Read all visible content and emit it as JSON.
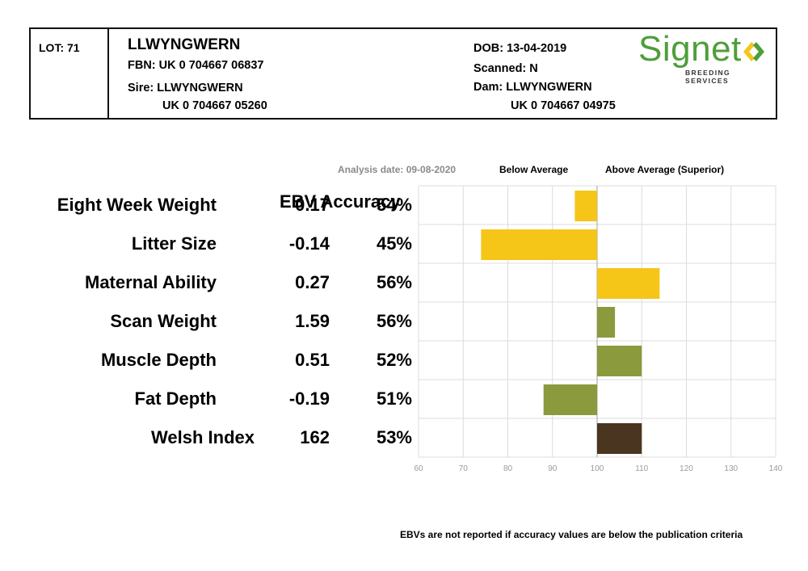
{
  "header": {
    "lot": "LOT: 71",
    "name": "LLWYNGWERN",
    "fbn": "FBN: UK 0 704667 06837",
    "sire": "Sire: LLWYNGWERN",
    "sire_id": "UK 0 704667 05260",
    "dob": "DOB: 13-04-2019",
    "scanned": "Scanned: N",
    "dam": "Dam: LLWYNGWERN",
    "dam_id": "UK 0 704667 04975",
    "logo_text": "Signet",
    "logo_sub": "BREEDING SERVICES"
  },
  "labels": {
    "analysis_date": "Analysis date: 09-08-2020",
    "below_average": "Below Average",
    "above_average": "Above Average (Superior)",
    "ebv_accuracy": "EBV Accuracy",
    "footnote": "EBVs are not reported if accuracy values are below the publication criteria"
  },
  "colors": {
    "yellow": "#f5c518",
    "green": "#8a9a3c",
    "brown": "#4a3520",
    "grid": "#dcdcdc",
    "logo_green": "#4e9e3a"
  },
  "chart_data": {
    "type": "bar",
    "orientation": "horizontal",
    "xlim": [
      60,
      140
    ],
    "baseline": 100,
    "ticks": [
      60,
      70,
      80,
      90,
      100,
      110,
      120,
      130,
      140
    ],
    "grid": true,
    "categories": [
      "Eight Week Weight",
      "Litter Size",
      "Maternal Ability",
      "Scan Weight",
      "Muscle Depth",
      "Fat Depth",
      "Welsh Index"
    ],
    "ebv": [
      "0.17",
      "-0.14",
      "0.27",
      "1.59",
      "0.51",
      "-0.19",
      "162"
    ],
    "accuracy": [
      "54%",
      "45%",
      "56%",
      "56%",
      "52%",
      "51%",
      "53%"
    ],
    "values": [
      95,
      74,
      114,
      104,
      110,
      88,
      110
    ],
    "bar_colors": [
      "yellow",
      "yellow",
      "yellow",
      "green",
      "green",
      "green",
      "brown"
    ]
  }
}
